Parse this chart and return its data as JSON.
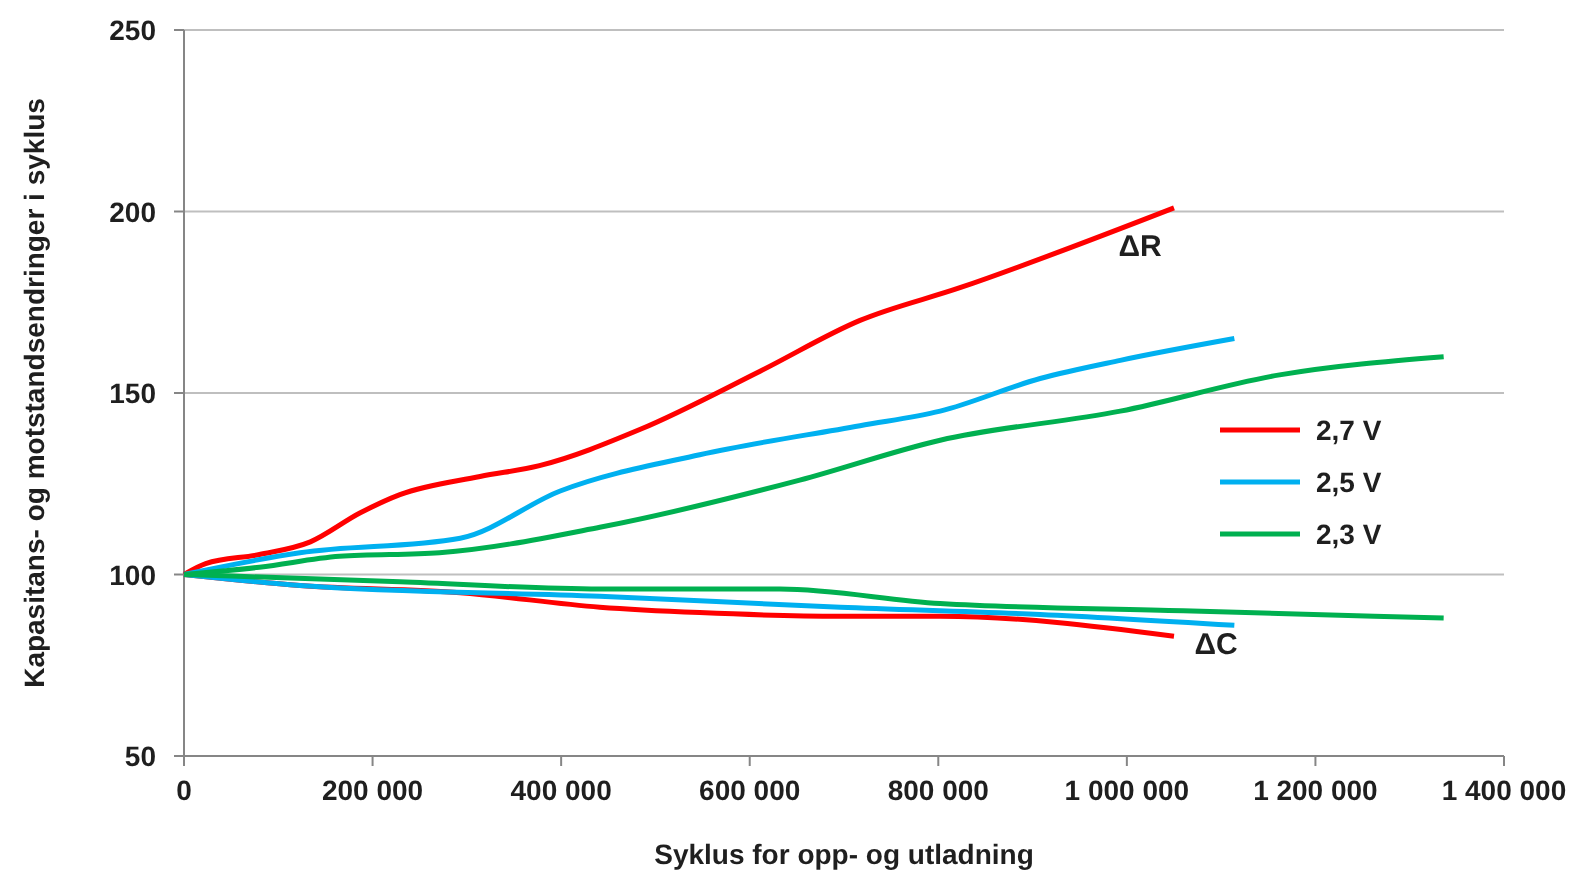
{
  "chart_data": {
    "type": "line",
    "xlabel": "Syklus for opp- og utladning",
    "ylabel": "Kapasitans- og motstandsendringer i syklus",
    "xlim": [
      0,
      1400000
    ],
    "xticks": [
      {
        "value": 0,
        "label": "0"
      },
      {
        "value": 200000,
        "label": "200 000"
      },
      {
        "value": 400000,
        "label": "400 000"
      },
      {
        "value": 600000,
        "label": "600 000"
      },
      {
        "value": 800000,
        "label": "800 000"
      },
      {
        "value": 1000000,
        "label": "1 000 000"
      },
      {
        "value": 1200000,
        "label": "1 200 000"
      },
      {
        "value": 1400000,
        "label": "1 400 000"
      }
    ],
    "ylim": [
      50,
      250
    ],
    "yticks": [
      50,
      100,
      150,
      200,
      250
    ],
    "grid": "y",
    "legend": "right",
    "marker": "none",
    "line_style": "solid",
    "annotations": [
      "ΔR",
      "ΔC"
    ],
    "series": [
      {
        "name": "2,7 V",
        "color": "#ff0000",
        "x": [
          0,
          23000,
          80000,
          134000,
          187000,
          229000,
          314000,
          377000,
          484000,
          611000,
          717000,
          823000,
          1050000
        ],
        "values": [
          100,
          103,
          105.5,
          109,
          117,
          122,
          127,
          130,
          140,
          156,
          170,
          179,
          201
        ]
      },
      {
        "name": "2,5 V",
        "color": "#00b0f0",
        "x": [
          0,
          123000,
          293000,
          399000,
          547000,
          717000,
          802000,
          908000,
          993000,
          1114000
        ],
        "values": [
          100,
          106,
          110,
          123,
          133,
          141,
          145,
          154,
          159,
          165
        ]
      },
      {
        "name": "2,3 V",
        "color": "#00b050",
        "x": [
          0,
          80000,
          165000,
          271000,
          441000,
          653000,
          802000,
          993000,
          1162000,
          1336000
        ],
        "values": [
          100,
          102,
          105,
          106,
          113,
          126,
          137,
          145,
          155,
          160
        ]
      },
      {
        "color": "#ff0000",
        "x": [
          0,
          123000,
          293000,
          441000,
          547000,
          696000,
          802000,
          1050000
        ],
        "values": [
          100,
          97,
          95,
          91,
          89.5,
          88.5,
          88.5,
          83
        ]
      },
      {
        "color": "#00b0f0",
        "x": [
          0,
          123000,
          441000,
          696000,
          908000,
          1114000
        ],
        "values": [
          100,
          97,
          94,
          91,
          89,
          86
        ]
      },
      {
        "color": "#00b050",
        "x": [
          0,
          229000,
          441000,
          632000,
          802000,
          1060000,
          1336000
        ],
        "values": [
          100,
          98,
          96,
          96,
          92,
          90,
          88
        ]
      }
    ]
  }
}
